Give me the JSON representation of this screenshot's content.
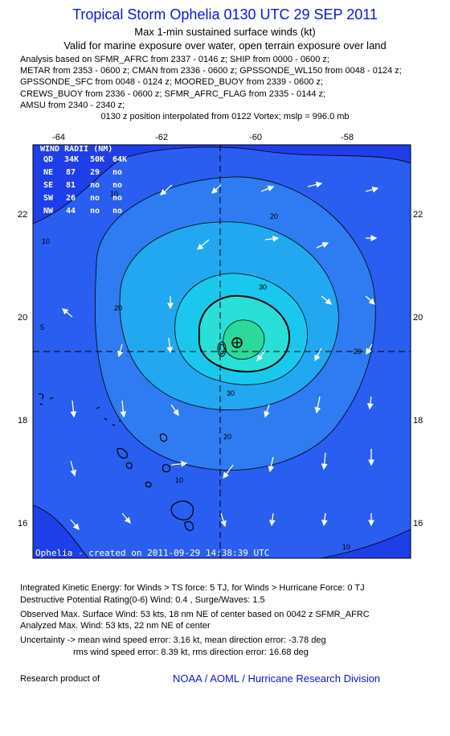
{
  "header": {
    "title": "Tropical Storm Ophelia 0130 UTC 29 SEP 2011",
    "subtitle": "Max 1-min sustained surface winds (kt)",
    "validity": "Valid for marine exposure over water, open terrain exposure over land"
  },
  "analysis_lines": [
    "Analysis based on SFMR_AFRC from 2337 - 0146 z; SHIP from 0000 - 0600 z;",
    "METAR from 2353 - 0600 z; CMAN from 2336 - 0600 z; GPSSONDE_WL150 from 0048 - 0124 z;",
    "GPSSONDE_SFC from 0048 - 0124 z; MOORED_BUOY from 2339 - 0600 z;",
    "CREWS_BUOY from 2336 - 0600 z; SFMR_AFRC_FLAG from 2335 - 0144 z;",
    "AMSU from 2340 - 2340 z;"
  ],
  "position_note": "0130 z position interpolated from 0122 Vortex; mslp = 996.0 mb",
  "map": {
    "lon_labels": [
      "-64",
      "-62",
      "-60",
      "-58"
    ],
    "lat_labels": [
      "22",
      "20",
      "18",
      "16"
    ],
    "wind_radii": {
      "title": "WIND RADII (NM)",
      "header": [
        "QD",
        "34K",
        "50K",
        "64K"
      ],
      "rows": [
        [
          "NE",
          "87",
          "29",
          "no"
        ],
        [
          "SE",
          "81",
          "no",
          "no"
        ],
        [
          "SW",
          "26",
          "no",
          "no"
        ],
        [
          "NW",
          "44",
          "no",
          "no"
        ]
      ]
    },
    "contour_labels": [
      "10",
      "20",
      "30",
      "20",
      "30",
      "20",
      "10",
      "10",
      "5",
      "20",
      "10"
    ],
    "footer_note": "Ophelia - created on 2011-09-29 14:38:39 UTC",
    "colors": {
      "ocean": "#1e3ee8",
      "band10": "#2a5ef0",
      "band20": "#2f7cf2",
      "band30": "#22a8f0",
      "band34": "#1ac8ee",
      "band40": "#28e0d8",
      "band50": "#2cd89a"
    }
  },
  "footer": {
    "ike": "Integrated Kinetic Energy:  for Winds > TS force: 5 TJ,  for Winds > Hurricane Force: 0 TJ",
    "dpr": "Destructive Potential Rating(0-6)   Wind: 0.4 , Surge/Waves: 1.5",
    "observed": "Observed Max. Surface Wind: 53 kts, 18 nm NE of center based on 0042 z SFMR_AFRC",
    "analyzed": "Analyzed Max. Wind: 53 kts, 22 nm NE of center",
    "uncert1": "Uncertainty -> mean wind speed error: 3.16 kt,   mean direction error:  -3.78 deg",
    "uncert2": "rms wind speed error: 8.39 kt,   rms direction error: 16.68 deg",
    "credit_label": "Research product of",
    "credit_org": "NOAA / AOML / Hurricane Research Division"
  }
}
